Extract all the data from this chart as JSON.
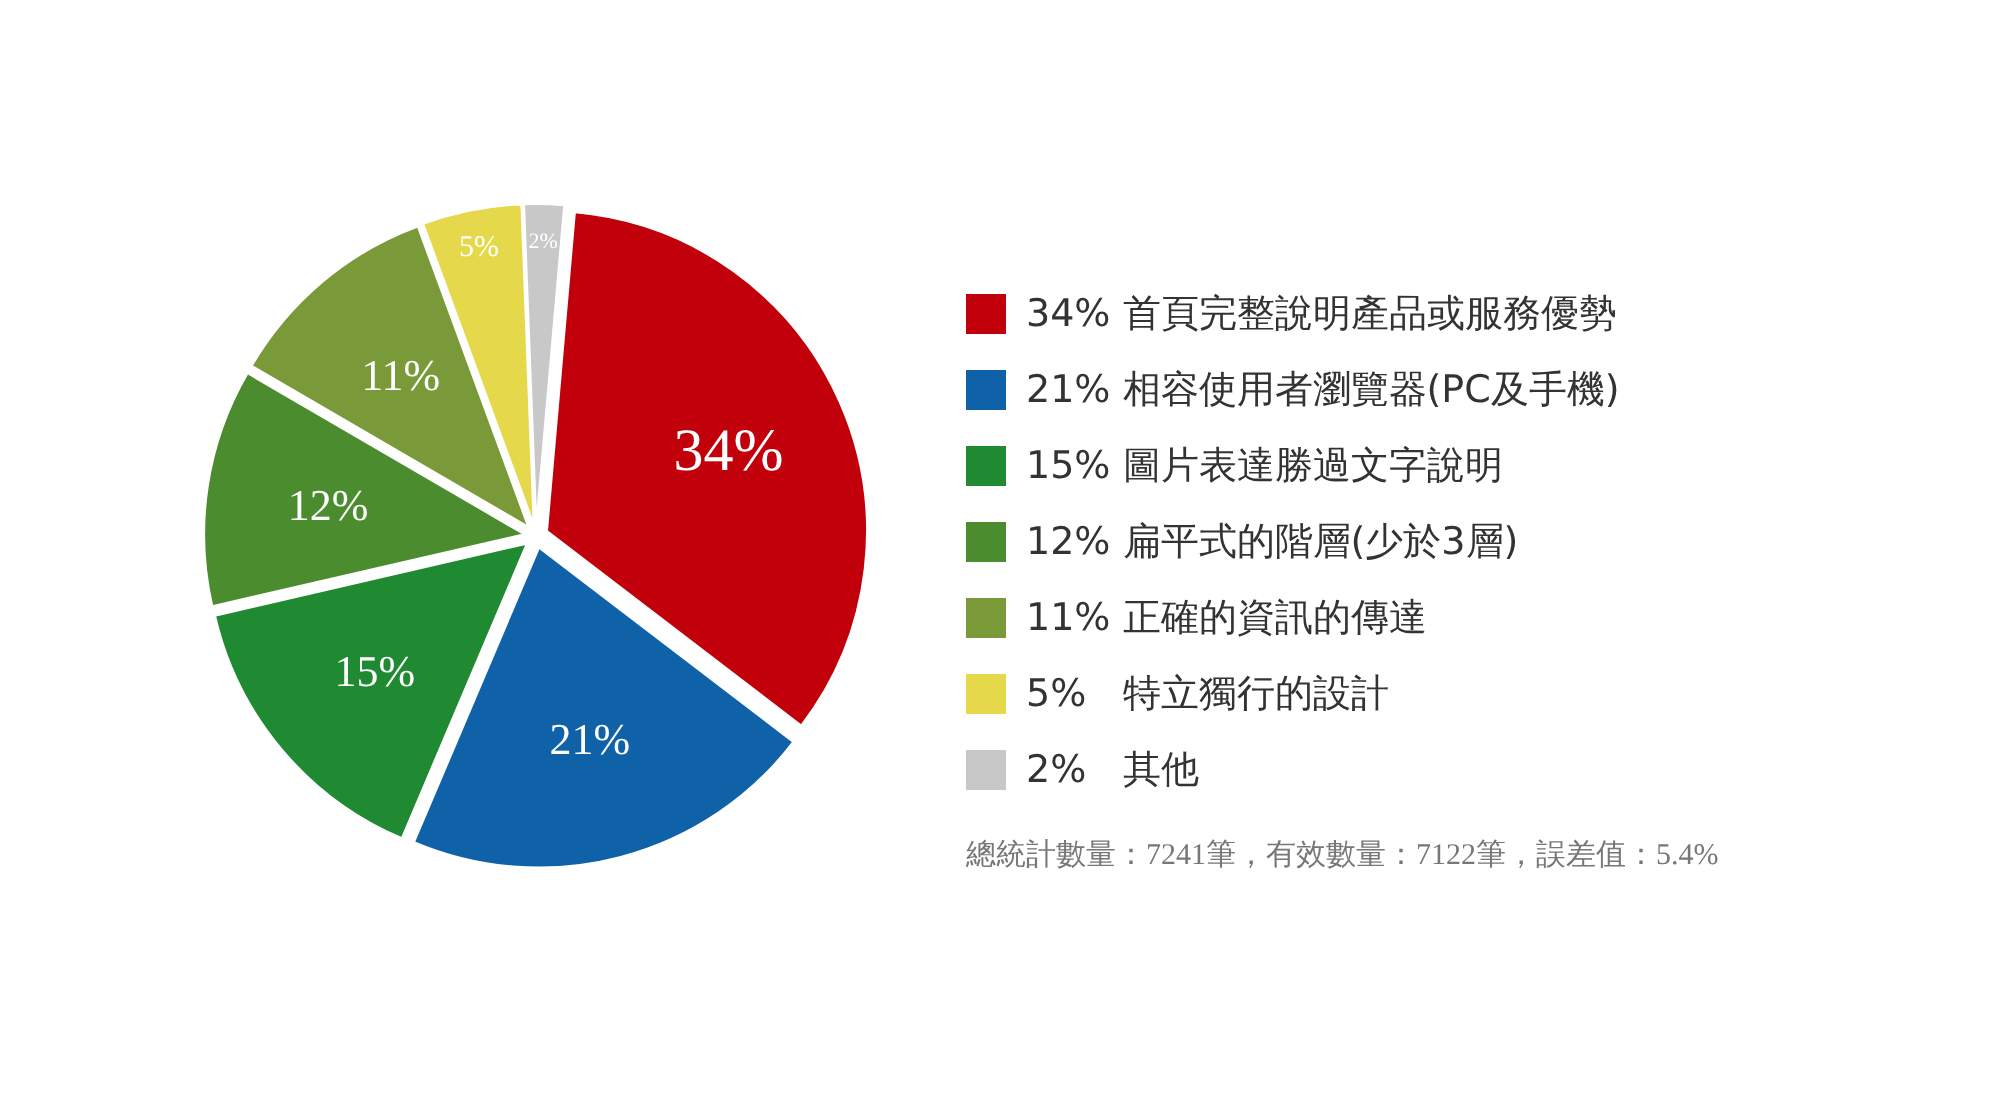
{
  "chart_data": {
    "type": "pie",
    "categories": [
      "34% 首頁完整說明產品或服務優勢",
      "21% 相容使用者瀏覽器(PC及手機)",
      "15% 圖片表達勝過文字說明",
      "12% 扁平式的階層(少於3層)",
      "11% 正確的資訊的傳達",
      "5%   特立獨行的設計",
      "2%   其他"
    ],
    "value_labels": [
      "34%",
      "21%",
      "15%",
      "12%",
      "11%",
      "5%",
      "2%"
    ],
    "values": [
      34,
      21,
      15,
      12,
      11,
      5,
      2
    ],
    "colors": [
      "#c1000b",
      "#1062a8",
      "#1f8a32",
      "#4a8c2e",
      "#7a9a3a",
      "#e5d84a",
      "#c8c8c8"
    ],
    "legend": "right",
    "annotations": [
      "總統計數量：7241筆，有效數量：7122筆，誤差值：5.4%"
    ]
  }
}
